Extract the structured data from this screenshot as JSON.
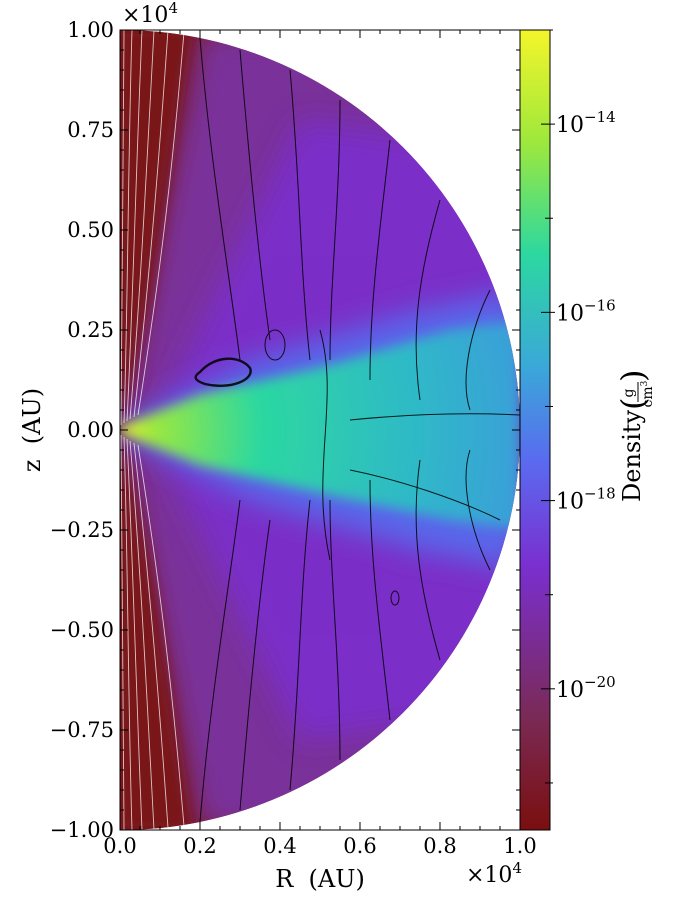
{
  "chart_data": {
    "type": "heatmap",
    "title": "",
    "xlabel": "R  (AU)",
    "ylabel": "z  (AU)",
    "x_multiplier": "×10",
    "x_multiplier_exp": "4",
    "y_multiplier": "×10",
    "y_multiplier_exp": "4",
    "xlim": [
      0.0,
      1.0
    ],
    "ylim": [
      -1.0,
      1.0
    ],
    "xticks": [
      {
        "value": 0.0,
        "label": "0.0"
      },
      {
        "value": 0.2,
        "label": "0.2"
      },
      {
        "value": 0.4,
        "label": "0.4"
      },
      {
        "value": 0.6,
        "label": "0.6"
      },
      {
        "value": 0.8,
        "label": "0.8"
      },
      {
        "value": 1.0,
        "label": "1.0"
      }
    ],
    "yticks": [
      {
        "value": 1.0,
        "label": "1.00"
      },
      {
        "value": 0.75,
        "label": "0.75"
      },
      {
        "value": 0.5,
        "label": "0.50"
      },
      {
        "value": 0.25,
        "label": "0.25"
      },
      {
        "value": 0.0,
        "label": "0.00"
      },
      {
        "value": -0.25,
        "label": "−0.25"
      },
      {
        "value": -0.5,
        "label": "−0.50"
      },
      {
        "value": -0.75,
        "label": "−0.75"
      },
      {
        "value": -1.0,
        "label": "−1.00"
      }
    ],
    "colorbar": {
      "label": "Density",
      "unit_numerator": "g",
      "unit_denominator": "cm",
      "unit_denominator_exp": "3",
      "scale": "log",
      "colormap": "viridis_r-like (dark red → purple → blue → green → yellow)",
      "range": [
        -21.5,
        -13.0
      ],
      "ticks": [
        {
          "exp": -14,
          "base": "10",
          "label": "−14"
        },
        {
          "exp": -16,
          "base": "10",
          "label": "−16"
        },
        {
          "exp": -18,
          "base": "10",
          "label": "−18"
        },
        {
          "exp": -20,
          "base": "10",
          "label": "−20"
        }
      ],
      "colors": [
        "#7a0f0f",
        "#7a2a55",
        "#7a2fd0",
        "#5a6af0",
        "#3aa8d8",
        "#2cd8a0",
        "#9ee83c",
        "#f4f52a"
      ]
    },
    "description_field": {
      "domain_shape": "half-disk of radius 1.0 (×10^4 AU)",
      "dense_region": "equatorial flared disk, densest near R≈0, z≈0",
      "streamlines_color_inner": "#ffffff",
      "streamlines_color_outer": "#000000"
    }
  }
}
